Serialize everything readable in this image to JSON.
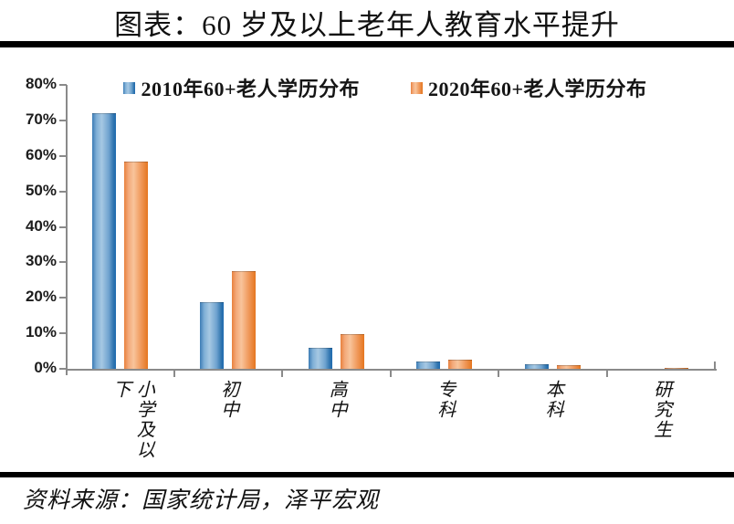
{
  "title": "图表：60 岁及以上老年人教育水平提升",
  "source_note": "资料来源：国家统计局，泽平宏观",
  "chart_data": {
    "type": "bar",
    "title": "图表：60 岁及以上老年人教育水平提升",
    "categories": [
      "小学及以下",
      "初中",
      "高中",
      "专科",
      "本科",
      "研究生"
    ],
    "series": [
      {
        "name": "2010年60+老人学历分布",
        "color": "#3f81bb",
        "values": [
          72.0,
          18.8,
          5.8,
          2.1,
          1.2,
          0.1
        ]
      },
      {
        "name": "2020年60+老人学历分布",
        "color": "#ed7d31",
        "values": [
          58.5,
          27.4,
          9.8,
          2.7,
          1.0,
          0.2
        ]
      }
    ],
    "xlabel": "",
    "ylabel": "",
    "ylim": [
      0,
      80
    ],
    "ytick_values": [
      0,
      10,
      20,
      30,
      40,
      50,
      60,
      70,
      80
    ],
    "ytick_labels": [
      "0%",
      "10%",
      "20%",
      "30%",
      "40%",
      "50%",
      "60%",
      "70%",
      "80%"
    ],
    "legend_position": "top",
    "grid": false
  }
}
